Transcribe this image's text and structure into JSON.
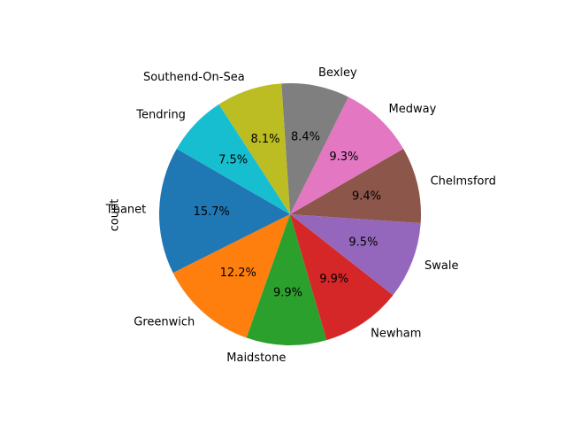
{
  "chart_data": {
    "type": "pie",
    "ylabel": "count",
    "start_angle_deg": 150,
    "direction": "counterclockwise",
    "slices": [
      {
        "label": "Thanet",
        "percent": 15.7,
        "pct_label": "15.7%",
        "color": "#1f77b4"
      },
      {
        "label": "Greenwich",
        "percent": 12.2,
        "pct_label": "12.2%",
        "color": "#ff7f0e"
      },
      {
        "label": "Maidstone",
        "percent": 9.9,
        "pct_label": "9.9%",
        "color": "#2ca02c"
      },
      {
        "label": "Newham",
        "percent": 9.9,
        "pct_label": "9.9%",
        "color": "#d62728"
      },
      {
        "label": "Swale",
        "percent": 9.5,
        "pct_label": "9.5%",
        "color": "#9467bd"
      },
      {
        "label": "Chelmsford",
        "percent": 9.4,
        "pct_label": "9.4%",
        "color": "#8c564b"
      },
      {
        "label": "Medway",
        "percent": 9.3,
        "pct_label": "9.3%",
        "color": "#e377c2"
      },
      {
        "label": "Bexley",
        "percent": 8.4,
        "pct_label": "8.4%",
        "color": "#7f7f7f"
      },
      {
        "label": "Southend-On-Sea",
        "percent": 8.1,
        "pct_label": "8.1%",
        "color": "#bcbd22"
      },
      {
        "label": "Tendring",
        "percent": 7.5,
        "pct_label": "7.5%",
        "color": "#17becf"
      }
    ]
  }
}
